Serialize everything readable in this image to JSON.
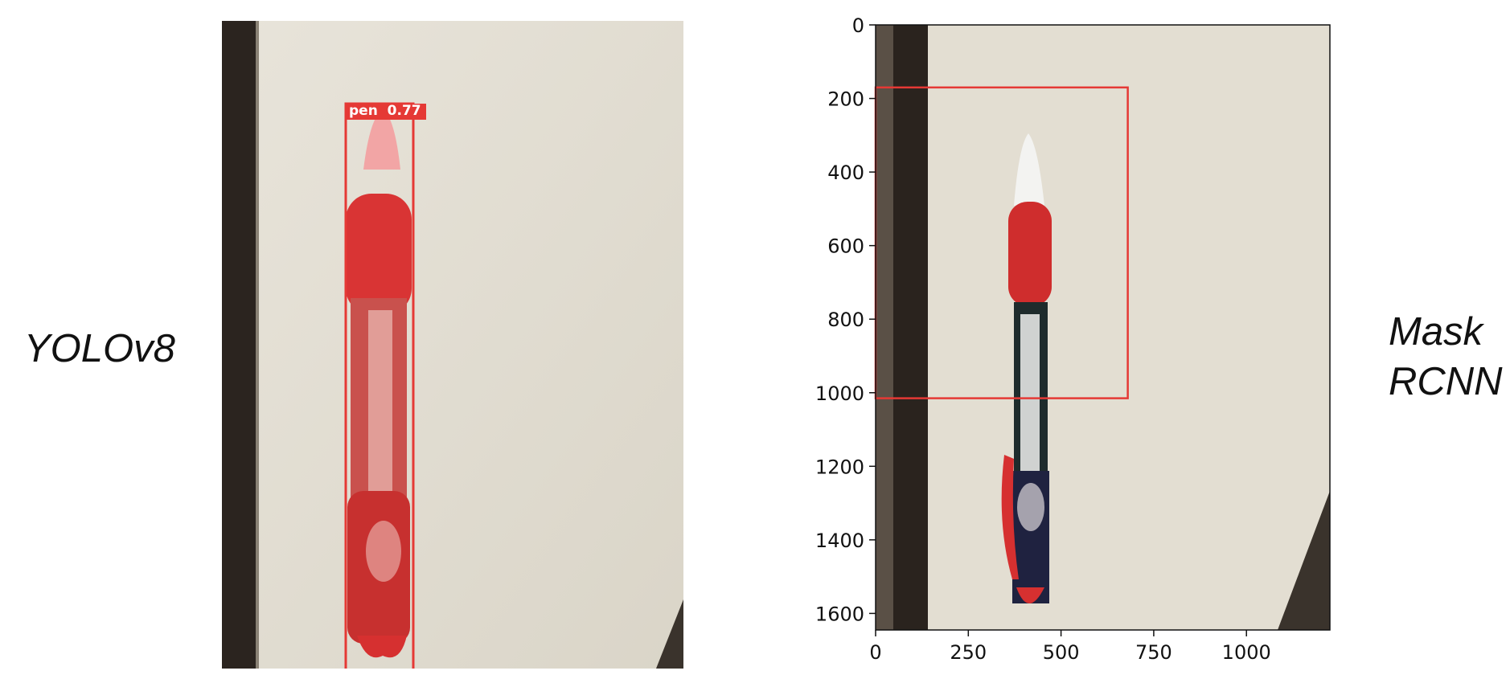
{
  "labels": {
    "left_model": "YOLOv8",
    "right_model_line1": "Mask",
    "right_model_line2": "RCNN"
  },
  "left_panel": {
    "detection_label": "pen",
    "confidence": "0.77",
    "box_color": "#e53935",
    "mask_color": "#e53935"
  },
  "right_panel": {
    "box_color": "#e53935",
    "x_ticks": [
      "0",
      "250",
      "500",
      "750",
      "1000"
    ],
    "y_ticks": [
      "0",
      "200",
      "400",
      "600",
      "800",
      "1000",
      "1200",
      "1400",
      "1600"
    ],
    "xlim": [
      0,
      1225
    ],
    "ylim": [
      1645,
      0
    ],
    "detection_box": {
      "x0": 0,
      "y0": 170,
      "x1": 680,
      "y1": 1015
    }
  },
  "colors": {
    "wall": "#e3dfd4",
    "door_frame": "#2d2620",
    "pen_red": "#c42a2a"
  }
}
